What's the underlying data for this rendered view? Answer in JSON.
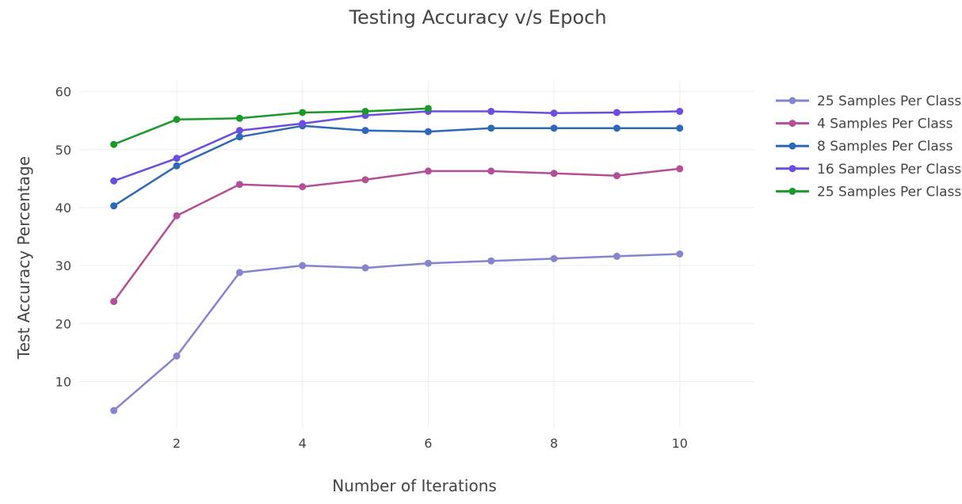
{
  "chart_data": {
    "type": "line",
    "title": "Testing Accuracy v/s Epoch",
    "xlabel": "Number of Iterations",
    "ylabel": "Test Accuracy Percentage",
    "x": [
      1,
      2,
      3,
      4,
      5,
      6,
      7,
      8,
      9,
      10
    ],
    "xlim": [
      0.45,
      11.2
    ],
    "ylim": [
      2,
      62
    ],
    "xticks": [
      2,
      4,
      6,
      8,
      10
    ],
    "yticks": [
      10,
      20,
      30,
      40,
      50,
      60
    ],
    "grid": true,
    "legend_position": "top-right",
    "series": [
      {
        "name": "25 Samples Per Class",
        "color": "#8585cf",
        "x": [
          1,
          2,
          3,
          4,
          5,
          6,
          7,
          8,
          9,
          10
        ],
        "values": [
          5.0,
          14.4,
          28.8,
          30.0,
          29.6,
          30.4,
          30.8,
          31.2,
          31.6,
          32.0
        ]
      },
      {
        "name": "4 Samples Per Class",
        "color": "#b24f97",
        "x": [
          1,
          2,
          3,
          4,
          5,
          6,
          7,
          8,
          9,
          10
        ],
        "values": [
          23.8,
          38.6,
          44.0,
          43.6,
          44.8,
          46.3,
          46.3,
          45.9,
          45.5,
          46.7
        ]
      },
      {
        "name": "8 Samples Per Class",
        "color": "#2e69b8",
        "x": [
          1,
          2,
          3,
          4,
          5,
          6,
          7,
          8,
          9,
          10
        ],
        "values": [
          40.3,
          47.2,
          52.2,
          54.1,
          53.3,
          53.1,
          53.7,
          53.7,
          53.7,
          53.7
        ]
      },
      {
        "name": "16 Samples Per Class",
        "color": "#6b4ee0",
        "x": [
          1,
          2,
          3,
          4,
          5,
          6,
          7,
          8,
          9,
          10
        ],
        "values": [
          44.6,
          48.5,
          53.3,
          54.5,
          55.9,
          56.6,
          56.6,
          56.3,
          56.4,
          56.6
        ]
      },
      {
        "name": "25 Samples Per Class",
        "color": "#1a9a2a",
        "x": [
          1,
          2,
          3,
          4,
          5,
          6
        ],
        "values": [
          50.9,
          55.2,
          55.4,
          56.4,
          56.6,
          57.1
        ]
      }
    ]
  }
}
